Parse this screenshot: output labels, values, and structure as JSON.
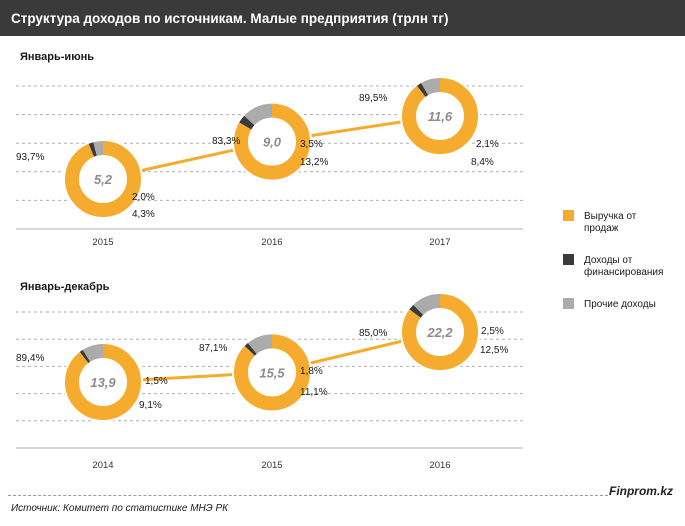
{
  "title": "Структура  доходов  по источникам. Малые предприятия (трлн  тг)",
  "source": "Источник:  Комитет по статистике МНЭ РК",
  "brand": "Finprom.kz",
  "colors": {
    "sales": "#f5ac2e",
    "financing": "#3a3a3a",
    "other": "#ababab",
    "grid": "#b0b0b0"
  },
  "legend": [
    {
      "key": "sales",
      "lines": [
        "Выручка от",
        "продаж"
      ],
      "color": "#f5ac2e"
    },
    {
      "key": "financing",
      "lines": [
        "Доходы от",
        "финансирования"
      ],
      "color": "#3a3a3a"
    },
    {
      "key": "other",
      "lines": [
        "Прочие доходы"
      ],
      "color": "#ababab"
    }
  ],
  "chart_data": [
    {
      "type": "line",
      "title": "Январь-июнь",
      "categories": [
        "2015",
        "2016",
        "2017"
      ],
      "values": [
        5.2,
        9.0,
        11.6
      ],
      "value_labels": [
        "5,2",
        "9,0",
        "11,6"
      ],
      "breakdown": [
        {
          "sales": 93.7,
          "financing": 2.0,
          "other": 4.3,
          "labels": {
            "sales": "93,7%",
            "financing": "2,0%",
            "other": "4,3%"
          }
        },
        {
          "sales": 83.3,
          "financing": 3.5,
          "other": 13.2,
          "labels": {
            "sales": "83,3%",
            "financing": "3,5%",
            "other": "13,2%"
          }
        },
        {
          "sales": 89.5,
          "financing": 2.1,
          "other": 8.4,
          "labels": {
            "sales": "89,5%",
            "financing": "2,1%",
            "other": "8,4%"
          }
        }
      ]
    },
    {
      "type": "line",
      "title": "Январь-декабрь",
      "categories": [
        "2014",
        "2015",
        "2016"
      ],
      "values": [
        13.9,
        15.5,
        22.2
      ],
      "value_labels": [
        "13,9",
        "15,5",
        "22,2"
      ],
      "breakdown": [
        {
          "sales": 89.4,
          "financing": 1.5,
          "other": 9.1,
          "labels": {
            "sales": "89,4%",
            "financing": "1,5%",
            "other": "9,1%"
          }
        },
        {
          "sales": 87.1,
          "financing": 1.8,
          "other": 11.1,
          "labels": {
            "sales": "87,1%",
            "financing": "1,8%",
            "other": "11,1%"
          }
        },
        {
          "sales": 85.0,
          "financing": 2.5,
          "other": 12.5,
          "labels": {
            "sales": "85,0%",
            "financing": "2,5%",
            "other": "12,5%"
          }
        }
      ]
    }
  ]
}
